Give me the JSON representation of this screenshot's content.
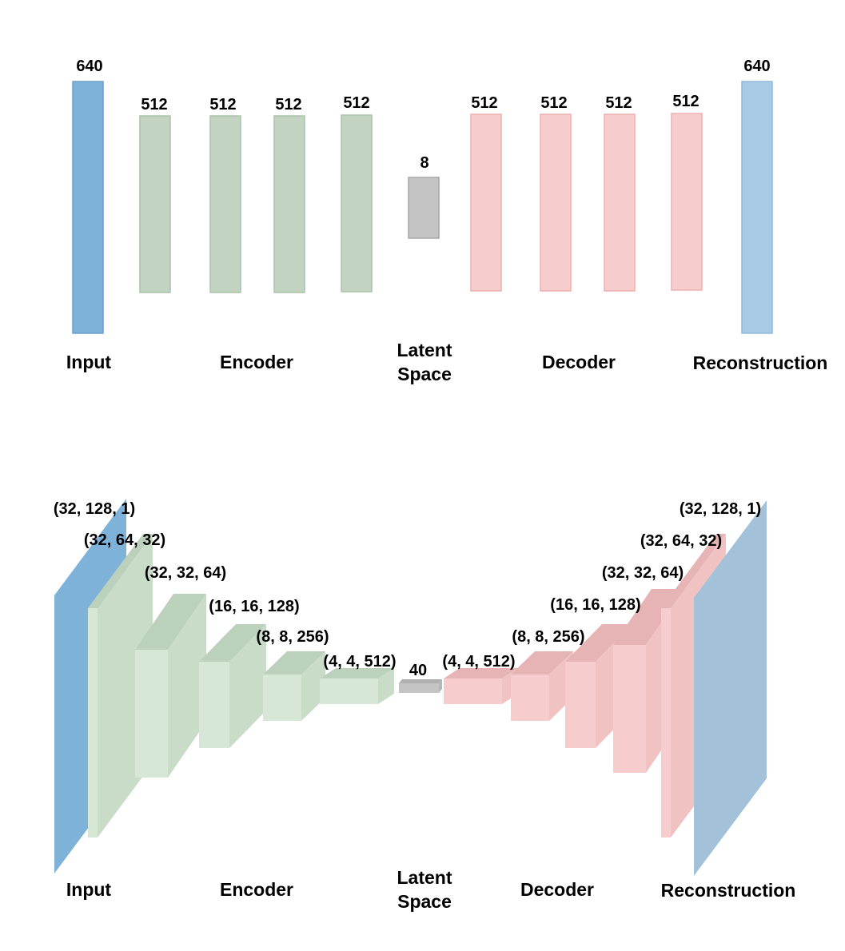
{
  "colors": {
    "input": "#7eb2d9",
    "input_stroke": "#6aa0cc",
    "encoder": "#c2d4c1",
    "encoder_stroke": "#a9c3a8",
    "latent": "#c4c4c4",
    "latent_stroke": "#a6a6a6",
    "decoder": "#f6cccc",
    "decoder_stroke": "#eeb0b0",
    "reconstruction": "#a9cae4",
    "reconstruction_stroke": "#8fb8dc",
    "conv_encoder_front": "#d6e7d6",
    "conv_encoder_side": "#c8dcc8",
    "conv_encoder_top": "#bcd1bc",
    "conv_decoder_front": "#f7cccc",
    "conv_decoder_side": "#f0c2c2",
    "conv_decoder_top": "#e6b4b4",
    "conv_input": "#7eb2d9",
    "conv_recon": "#a3c2da"
  },
  "dense_diagram": {
    "layer_sizes": [
      "640",
      "512",
      "512",
      "512",
      "512",
      "8",
      "512",
      "512",
      "512",
      "512",
      "640"
    ],
    "sections": {
      "input": "Input",
      "encoder": "Encoder",
      "latent_line1": "Latent",
      "latent_line2": "Space",
      "decoder": "Decoder",
      "reconstruction": "Reconstruction"
    }
  },
  "conv_diagram": {
    "encoder_shapes": [
      "(32, 128, 1)",
      "(32, 64, 32)",
      "(32, 32, 64)",
      "(16, 16, 128)",
      "(8, 8, 256)",
      "(4, 4, 512)"
    ],
    "latent_size": "40",
    "decoder_shapes": [
      "(4, 4, 512)",
      "(8, 8, 256)",
      "(16, 16, 128)",
      "(32, 32, 64)",
      "(32, 64, 32)",
      "(32, 128, 1)"
    ],
    "sections": {
      "input": "Input",
      "encoder": "Encoder",
      "latent_line1": "Latent",
      "latent_line2": "Space",
      "decoder": "Decoder",
      "reconstruction": "Reconstruction"
    }
  }
}
